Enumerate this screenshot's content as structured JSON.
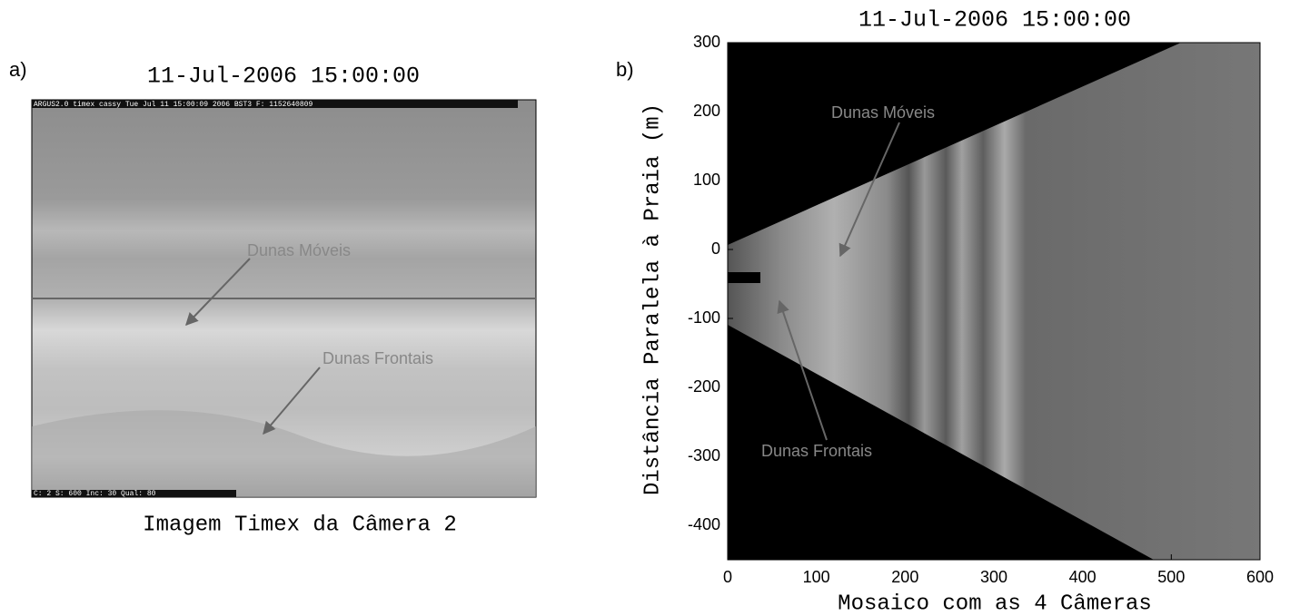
{
  "panel_a": {
    "label": "a)",
    "title": "11-Jul-2006 15:00:00",
    "header_text": "ARGUS2.0 timex  cassy       Tue Jul 11 15:00:09 2006 BST3     F: 1152640809",
    "footer_text": "C: 2 S:  600 Inc: 30 Qual:  80",
    "annotations": [
      "Dunas Móveis",
      "Dunas Frontais"
    ],
    "caption": "Imagem Timex da Câmera 2"
  },
  "panel_b": {
    "label": "b)",
    "title": "11-Jul-2006 15:00:00",
    "xlabel": "Mosaico com as 4 Câmeras",
    "ylabel": "Distância Paralela à Praia (m)",
    "xlim": [
      0,
      600
    ],
    "ylim": [
      -450,
      300
    ],
    "xticks": [
      0,
      100,
      200,
      300,
      400,
      500,
      600
    ],
    "yticks": [
      -400,
      -300,
      -200,
      -100,
      0,
      100,
      200,
      300
    ],
    "annotations": [
      "Dunas Móveis",
      "Dunas Frontais"
    ]
  }
}
